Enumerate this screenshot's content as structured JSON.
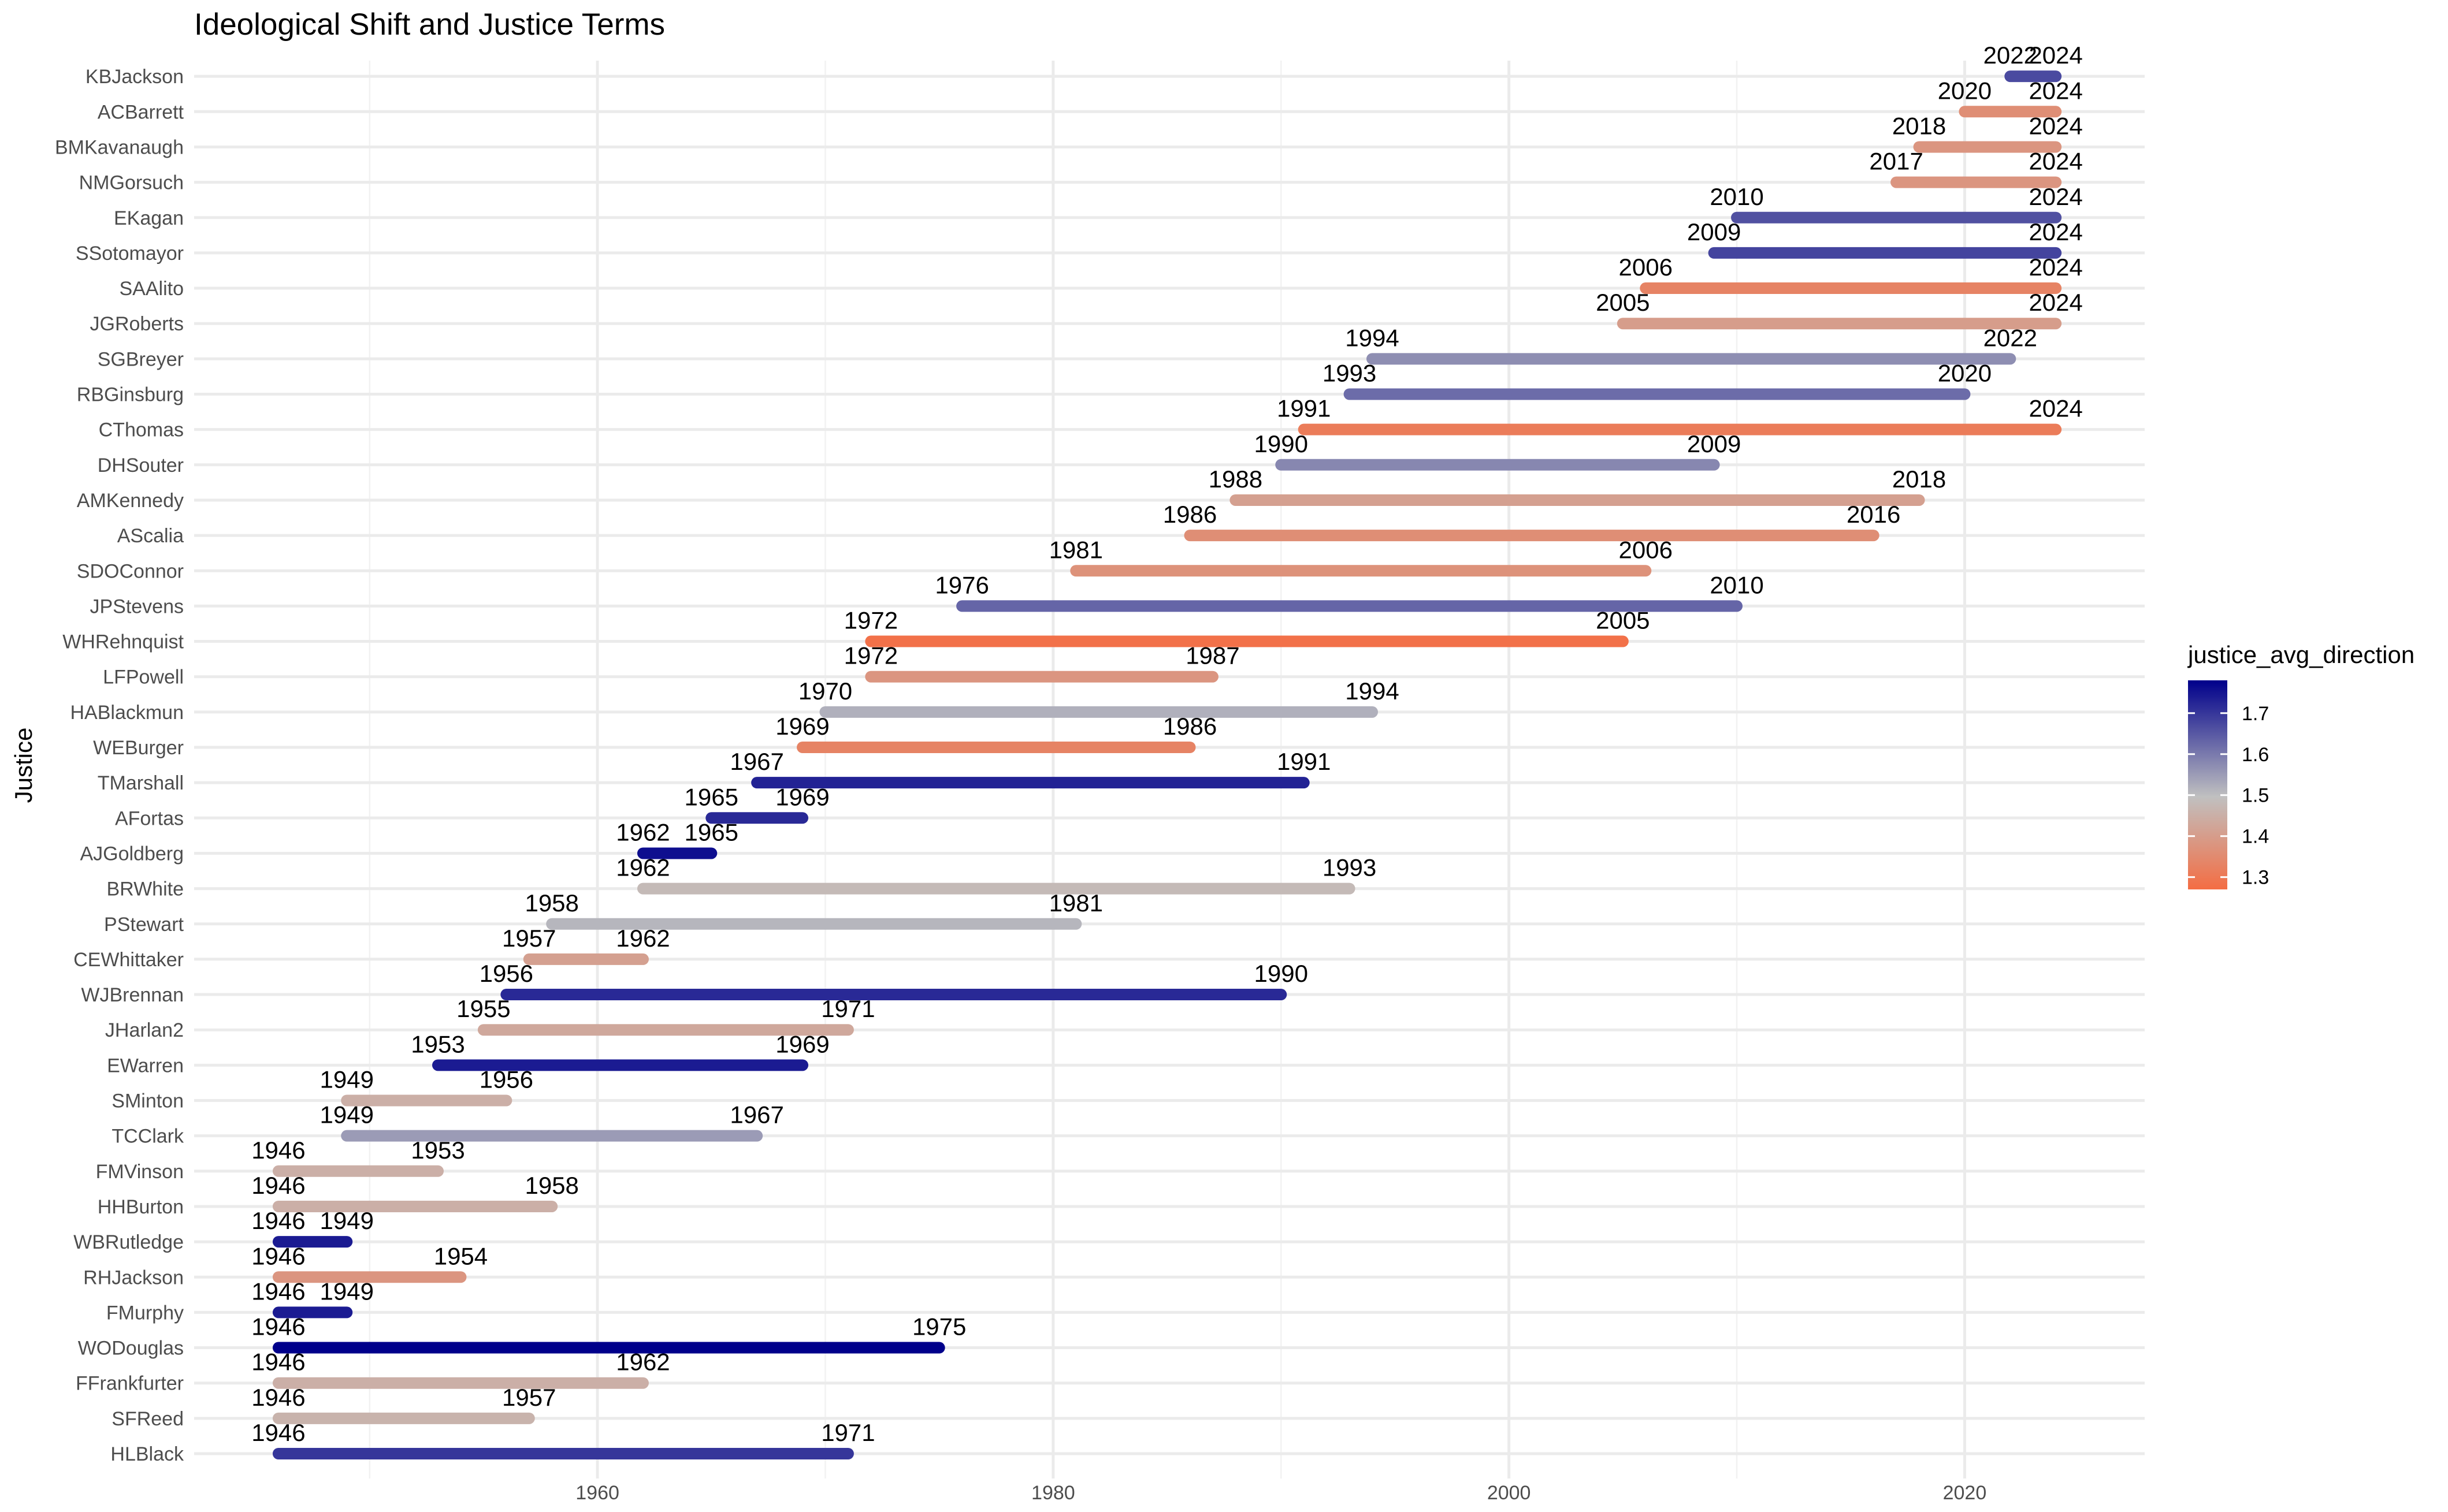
{
  "chart_data": {
    "type": "segment",
    "title": "Ideological Shift and Justice Terms",
    "xlabel": "",
    "ylabel": "Justice",
    "xlim": [
      1942.3,
      2027.9
    ],
    "x_ticks": [
      1960,
      1980,
      2000,
      2020
    ],
    "grid": true,
    "legend": {
      "title": "justice_avg_direction",
      "position": "right",
      "range": [
        1.27,
        1.78
      ],
      "ticks": [
        1.3,
        1.4,
        1.5,
        1.6,
        1.7
      ],
      "tick_labels": [
        "1.3",
        "1.4",
        "1.5",
        "1.6",
        "1.7"
      ],
      "colors": [
        "#F46D43",
        "#C0C0C0",
        "#00008B"
      ]
    },
    "justices": [
      {
        "name": "HLBlack",
        "start": 1946,
        "end": 1971,
        "direction": 1.7,
        "start_label": "1946",
        "end_label": "1971"
      },
      {
        "name": "SFReed",
        "start": 1946,
        "end": 1957,
        "direction": 1.46,
        "start_label": "1946",
        "end_label": "1957"
      },
      {
        "name": "FFrankfurter",
        "start": 1946,
        "end": 1962,
        "direction": 1.45,
        "start_label": "1946",
        "end_label": "1962"
      },
      {
        "name": "WODouglas",
        "start": 1946,
        "end": 1975,
        "direction": 1.78,
        "start_label": "1946",
        "end_label": "1975"
      },
      {
        "name": "FMurphy",
        "start": 1946,
        "end": 1949,
        "direction": 1.74,
        "start_label": "1946",
        "end_label": "1949"
      },
      {
        "name": "RHJackson",
        "start": 1946,
        "end": 1954,
        "direction": 1.38,
        "start_label": "1946",
        "end_label": "1954"
      },
      {
        "name": "WBRutledge",
        "start": 1946,
        "end": 1949,
        "direction": 1.74,
        "start_label": "1946",
        "end_label": "1949"
      },
      {
        "name": "HHBurton",
        "start": 1946,
        "end": 1958,
        "direction": 1.45,
        "start_label": "1946",
        "end_label": "1958"
      },
      {
        "name": "FMVinson",
        "start": 1946,
        "end": 1953,
        "direction": 1.45,
        "start_label": "1946",
        "end_label": "1953"
      },
      {
        "name": "TCClark",
        "start": 1949,
        "end": 1967,
        "direction": 1.55,
        "start_label": "1949",
        "end_label": "1967"
      },
      {
        "name": "SMinton",
        "start": 1949,
        "end": 1956,
        "direction": 1.45,
        "start_label": "1949",
        "end_label": "1956"
      },
      {
        "name": "EWarren",
        "start": 1953,
        "end": 1969,
        "direction": 1.74,
        "start_label": "1953",
        "end_label": "1969"
      },
      {
        "name": "JHarlan2",
        "start": 1955,
        "end": 1971,
        "direction": 1.43,
        "start_label": "1955",
        "end_label": "1971"
      },
      {
        "name": "WJBrennan",
        "start": 1956,
        "end": 1990,
        "direction": 1.72,
        "start_label": "1956",
        "end_label": "1990"
      },
      {
        "name": "CEWhittaker",
        "start": 1957,
        "end": 1962,
        "direction": 1.41,
        "start_label": "1957",
        "end_label": "1962"
      },
      {
        "name": "PStewart",
        "start": 1958,
        "end": 1981,
        "direction": 1.51,
        "start_label": "1958",
        "end_label": "1981"
      },
      {
        "name": "BRWhite",
        "start": 1962,
        "end": 1993,
        "direction": 1.48,
        "start_label": "1962",
        "end_label": "1993"
      },
      {
        "name": "AJGoldberg",
        "start": 1962,
        "end": 1965,
        "direction": 1.76,
        "start_label": "1962",
        "end_label": "1965"
      },
      {
        "name": "AFortas",
        "start": 1965,
        "end": 1969,
        "direction": 1.72,
        "start_label": "1965",
        "end_label": "1969"
      },
      {
        "name": "TMarshall",
        "start": 1967,
        "end": 1991,
        "direction": 1.73,
        "start_label": "1967",
        "end_label": "1991"
      },
      {
        "name": "WEBurger",
        "start": 1969,
        "end": 1986,
        "direction": 1.33,
        "start_label": "1969",
        "end_label": "1986"
      },
      {
        "name": "HABlackmun",
        "start": 1970,
        "end": 1994,
        "direction": 1.52,
        "start_label": "1970",
        "end_label": "1994"
      },
      {
        "name": "LFPowell",
        "start": 1972,
        "end": 1987,
        "direction": 1.38,
        "start_label": "1972",
        "end_label": "1987"
      },
      {
        "name": "WHRehnquist",
        "start": 1972,
        "end": 2005,
        "direction": 1.28,
        "start_label": "1972",
        "end_label": "2005"
      },
      {
        "name": "JPStevens",
        "start": 1976,
        "end": 2010,
        "direction": 1.63,
        "start_label": "1976",
        "end_label": "2010"
      },
      {
        "name": "SDOConnor",
        "start": 1981,
        "end": 2006,
        "direction": 1.37,
        "start_label": "1981",
        "end_label": "2006"
      },
      {
        "name": "AScalia",
        "start": 1986,
        "end": 2016,
        "direction": 1.36,
        "start_label": "1986",
        "end_label": "2016"
      },
      {
        "name": "AMKennedy",
        "start": 1988,
        "end": 2018,
        "direction": 1.41,
        "start_label": "1988",
        "end_label": "2018"
      },
      {
        "name": "DHSouter",
        "start": 1990,
        "end": 2009,
        "direction": 1.58,
        "start_label": "1990",
        "end_label": "2009"
      },
      {
        "name": "CThomas",
        "start": 1991,
        "end": 2024,
        "direction": 1.31,
        "start_label": "1991",
        "end_label": "2024"
      },
      {
        "name": "RBGinsburg",
        "start": 1993,
        "end": 2020,
        "direction": 1.62,
        "start_label": "1993",
        "end_label": "2020"
      },
      {
        "name": "SGBreyer",
        "start": 1994,
        "end": 2022,
        "direction": 1.57,
        "start_label": "1994",
        "end_label": "2022"
      },
      {
        "name": "JGRoberts",
        "start": 2005,
        "end": 2024,
        "direction": 1.4,
        "start_label": "2005",
        "end_label": "2024"
      },
      {
        "name": "SAAlito",
        "start": 2006,
        "end": 2024,
        "direction": 1.33,
        "start_label": "2006",
        "end_label": "2024"
      },
      {
        "name": "SSotomayor",
        "start": 2009,
        "end": 2024,
        "direction": 1.68,
        "start_label": "2009",
        "end_label": "2024"
      },
      {
        "name": "EKagan",
        "start": 2010,
        "end": 2024,
        "direction": 1.66,
        "start_label": "2010",
        "end_label": "2024"
      },
      {
        "name": "NMGorsuch",
        "start": 2017,
        "end": 2024,
        "direction": 1.38,
        "start_label": "2017",
        "end_label": "2024"
      },
      {
        "name": "BMKavanaugh",
        "start": 2018,
        "end": 2024,
        "direction": 1.38,
        "start_label": "2018",
        "end_label": "2024"
      },
      {
        "name": "ACBarrett",
        "start": 2020,
        "end": 2024,
        "direction": 1.36,
        "start_label": "2020",
        "end_label": "2024"
      },
      {
        "name": "KBJackson",
        "start": 2022,
        "end": 2024,
        "direction": 1.67,
        "start_label": "2022",
        "end_label": "2024"
      }
    ]
  }
}
